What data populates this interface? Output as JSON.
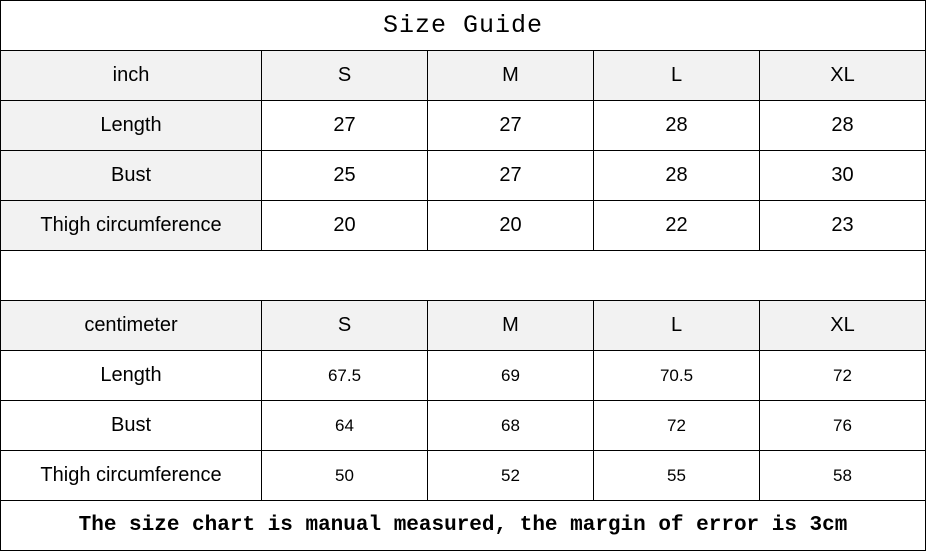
{
  "title": "Size Guide",
  "inch_table": {
    "unit": "inch",
    "sizes": [
      "S",
      "M",
      "L",
      "XL"
    ],
    "rows": [
      {
        "label": "Length",
        "values": [
          "27",
          "27",
          "28",
          "28"
        ]
      },
      {
        "label": "Bust",
        "values": [
          "25",
          "27",
          "28",
          "30"
        ]
      },
      {
        "label": "Thigh circumference",
        "values": [
          "20",
          "20",
          "22",
          "23"
        ]
      }
    ]
  },
  "cm_table": {
    "unit": "centimeter",
    "sizes": [
      "S",
      "M",
      "L",
      "XL"
    ],
    "rows": [
      {
        "label": "Length",
        "values": [
          "67.5",
          "69",
          "70.5",
          "72"
        ]
      },
      {
        "label": "Bust",
        "values": [
          "64",
          "68",
          "72",
          "76"
        ]
      },
      {
        "label": "Thigh circumference",
        "values": [
          "50",
          "52",
          "55",
          "58"
        ]
      }
    ]
  },
  "footer": "The size chart is manual measured, the margin of error is 3cm"
}
